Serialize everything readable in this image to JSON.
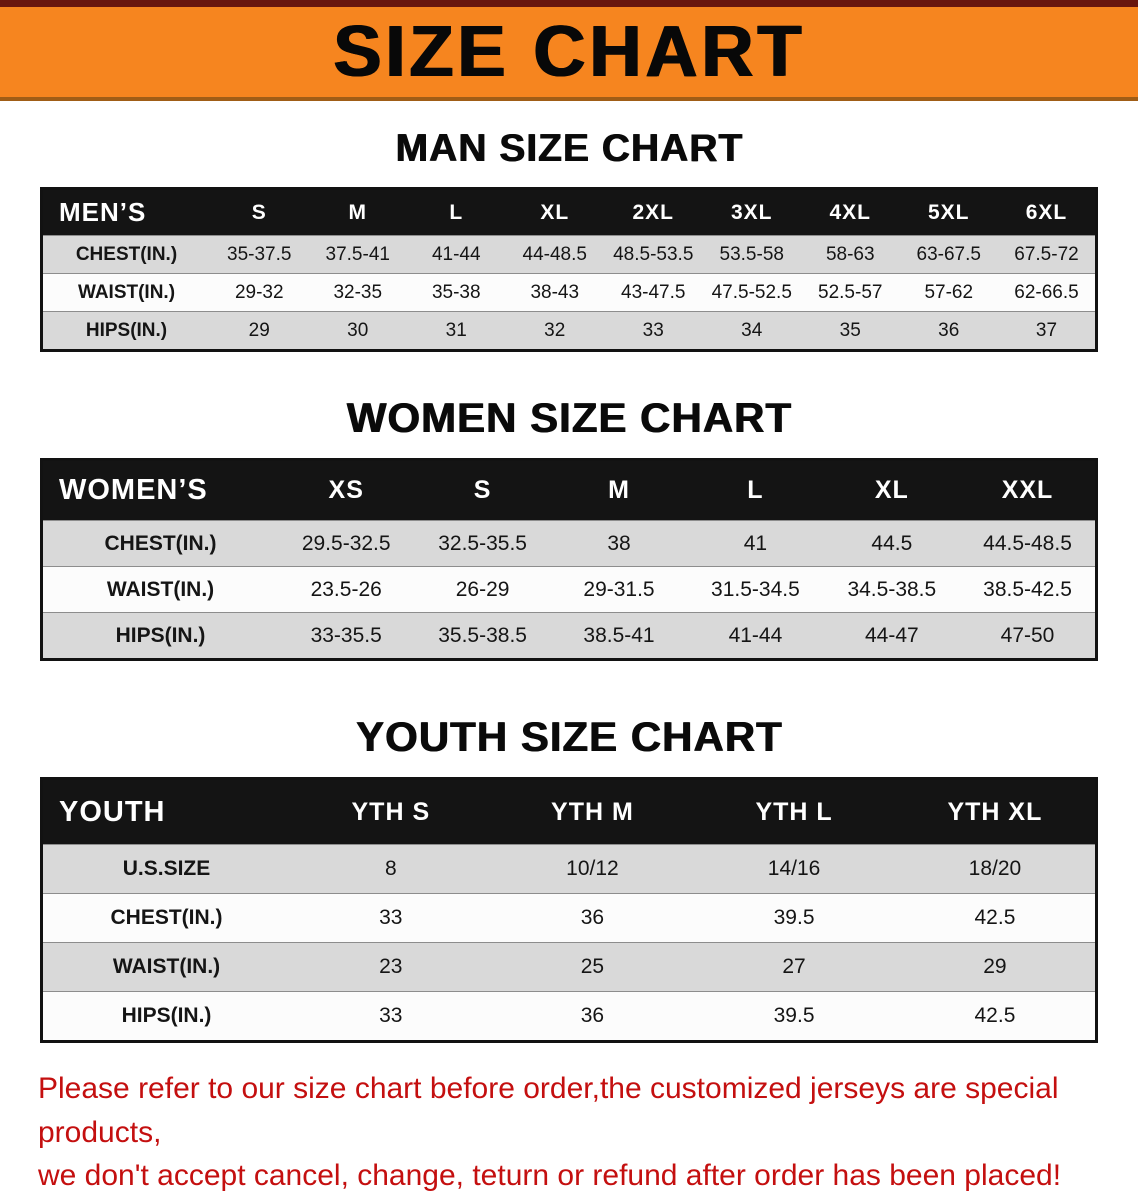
{
  "banner": {
    "title": "SIZE CHART"
  },
  "men": {
    "heading": "MAN SIZE CHART",
    "table": {
      "header": [
        "MEN’S",
        "S",
        "M",
        "L",
        "XL",
        "2XL",
        "3XL",
        "4XL",
        "5XL",
        "6XL"
      ],
      "rows": [
        [
          "CHEST(IN.)",
          "35-37.5",
          "37.5-41",
          "41-44",
          "44-48.5",
          "48.5-53.5",
          "53.5-58",
          "58-63",
          "63-67.5",
          "67.5-72"
        ],
        [
          "WAIST(IN.)",
          "29-32",
          "32-35",
          "35-38",
          "38-43",
          "43-47.5",
          "47.5-52.5",
          "52.5-57",
          "57-62",
          "62-66.5"
        ],
        [
          "HIPS(IN.)",
          "29",
          "30",
          "31",
          "32",
          "33",
          "34",
          "35",
          "36",
          "37"
        ]
      ]
    }
  },
  "women": {
    "heading": "WOMEN SIZE CHART",
    "table": {
      "header": [
        "WOMEN’S",
        "XS",
        "S",
        "M",
        "L",
        "XL",
        "XXL"
      ],
      "rows": [
        [
          "CHEST(IN.)",
          "29.5-32.5",
          "32.5-35.5",
          "38",
          "41",
          "44.5",
          "44.5-48.5"
        ],
        [
          "WAIST(IN.)",
          "23.5-26",
          "26-29",
          "29-31.5",
          "31.5-34.5",
          "34.5-38.5",
          "38.5-42.5"
        ],
        [
          "HIPS(IN.)",
          "33-35.5",
          "35.5-38.5",
          "38.5-41",
          "41-44",
          "44-47",
          "47-50"
        ]
      ]
    }
  },
  "youth": {
    "heading": "YOUTH SIZE CHART",
    "table": {
      "header": [
        "YOUTH",
        "YTH S",
        "YTH M",
        "YTH L",
        "YTH XL"
      ],
      "rows": [
        [
          "U.S.SIZE",
          "8",
          "10/12",
          "14/16",
          "18/20"
        ],
        [
          "CHEST(IN.)",
          "33",
          "36",
          "39.5",
          "42.5"
        ],
        [
          "WAIST(IN.)",
          "23",
          "25",
          "27",
          "29"
        ],
        [
          "HIPS(IN.)",
          "33",
          "36",
          "39.5",
          "42.5"
        ]
      ]
    }
  },
  "disclaimer": {
    "line1": "Please refer to our size chart before order,the customized jerseys are special products,",
    "line2": "we don't accept cancel, change, teturn or refund after order has been placed!"
  },
  "colors": {
    "banner_orange": "#f6851f",
    "header_black": "#141414",
    "row_gray": "#d9d9d9",
    "disclaimer_red": "#c40f0f"
  }
}
